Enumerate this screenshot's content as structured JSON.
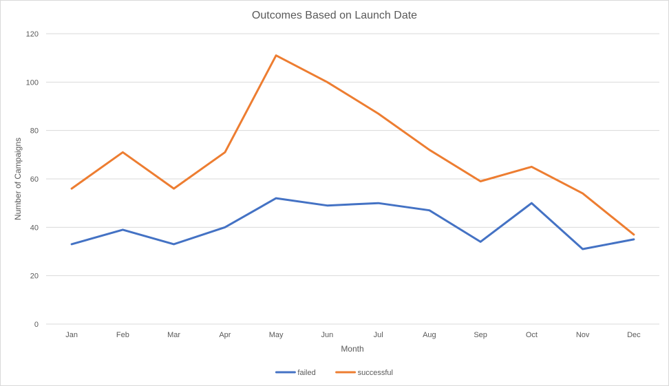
{
  "chart_data": {
    "type": "line",
    "title": "Outcomes Based on Launch Date",
    "xlabel": "Month",
    "ylabel": "Number of Campaigns",
    "categories": [
      "Jan",
      "Feb",
      "Mar",
      "Apr",
      "May",
      "Jun",
      "Jul",
      "Aug",
      "Sep",
      "Oct",
      "Nov",
      "Dec"
    ],
    "ylim": [
      0,
      120
    ],
    "yticks": [
      0,
      20,
      40,
      60,
      80,
      100,
      120
    ],
    "grid": true,
    "legend_position": "bottom",
    "series": [
      {
        "name": "failed",
        "color": "#4472c4",
        "values": [
          33,
          39,
          33,
          40,
          52,
          49,
          50,
          47,
          34,
          50,
          31,
          35
        ]
      },
      {
        "name": "successful",
        "color": "#ed7d31",
        "values": [
          56,
          71,
          56,
          71,
          111,
          100,
          87,
          72,
          59,
          65,
          54,
          37
        ]
      }
    ]
  }
}
